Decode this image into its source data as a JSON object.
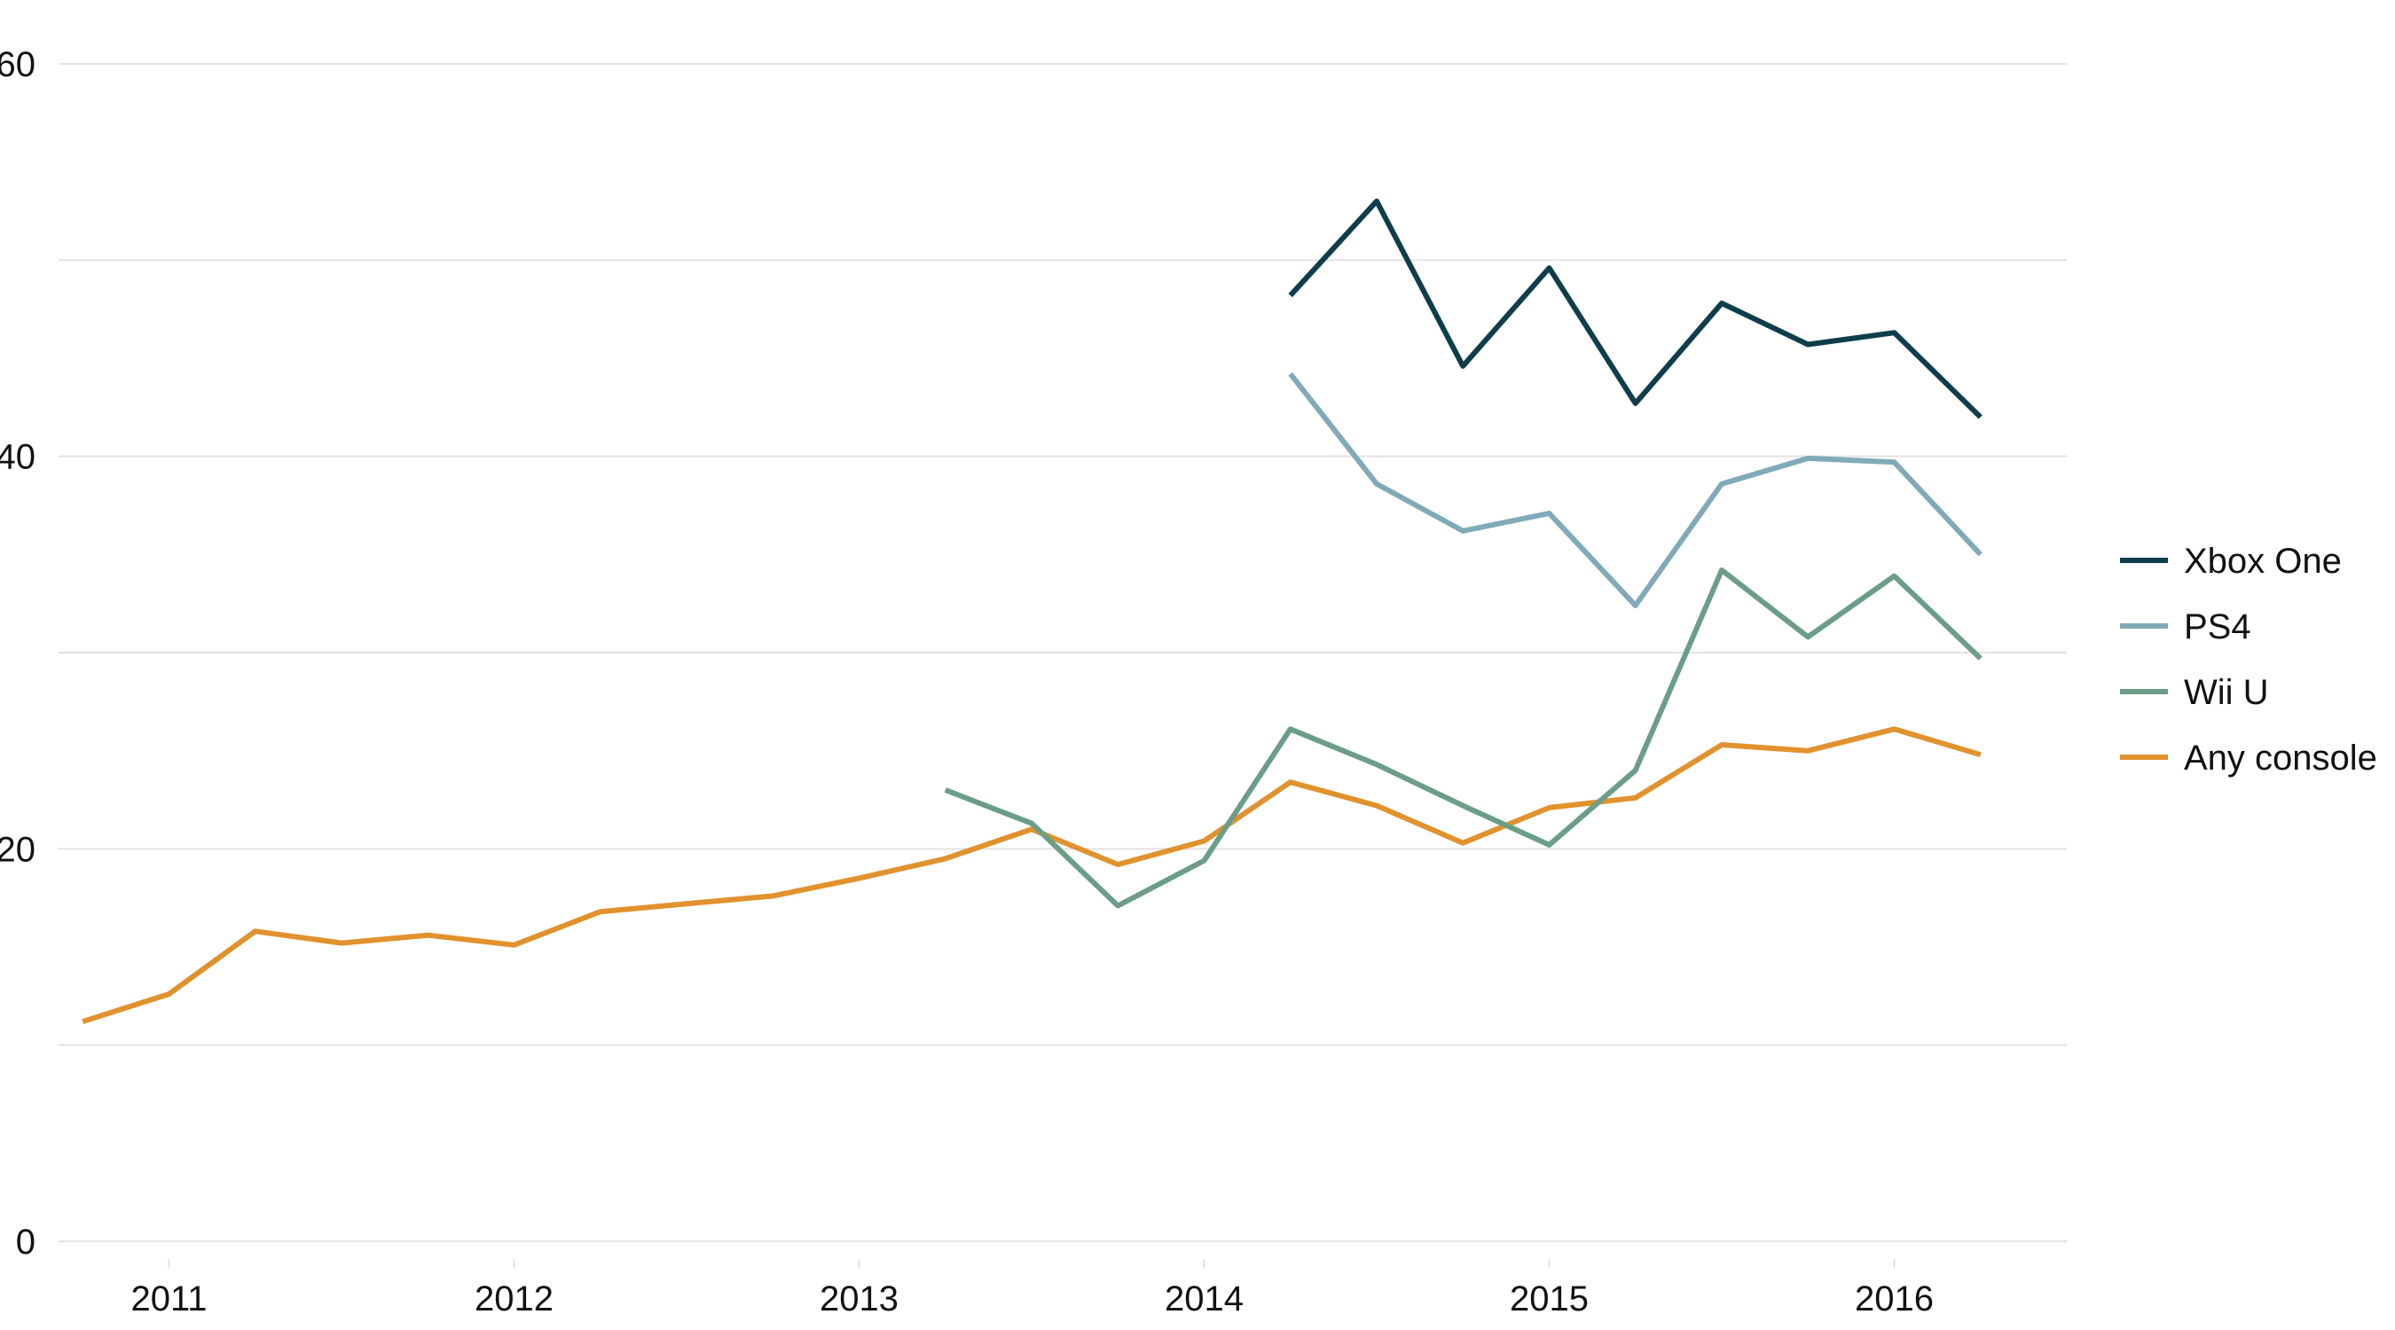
{
  "chart_data": {
    "type": "line",
    "title": "",
    "xlabel": "",
    "ylabel": "",
    "ylim": [
      0,
      60
    ],
    "xlim": [
      2010.68,
      2016.5
    ],
    "yticks": [
      0,
      20,
      40,
      60
    ],
    "ytick_labels": [
      "0",
      "20",
      "40",
      "60"
    ],
    "xticks": [
      2011,
      2012,
      2013,
      2014,
      2015,
      2016
    ],
    "xtick_labels": [
      "2011",
      "2012",
      "2013",
      "2014",
      "2015",
      "2016"
    ],
    "grid": true,
    "legend_position": "right",
    "series": [
      {
        "name": "Xbox One",
        "color": "#0e3d4b",
        "x": [
          2014.25,
          2014.5,
          2014.75,
          2015.0,
          2015.25,
          2015.5,
          2015.75,
          2016.0,
          2016.25
        ],
        "values": [
          48.2,
          53.0,
          44.6,
          49.6,
          42.7,
          47.8,
          45.7,
          46.3,
          42.0
        ]
      },
      {
        "name": "PS4",
        "color": "#80aab8",
        "x": [
          2014.25,
          2014.5,
          2014.75,
          2015.0,
          2015.25,
          2015.5,
          2015.75,
          2016.0,
          2016.25
        ],
        "values": [
          44.2,
          38.6,
          36.2,
          37.1,
          32.4,
          38.6,
          39.9,
          39.7,
          35.0
        ]
      },
      {
        "name": "Wii U",
        "color": "#6a9e86",
        "x": [
          2013.25,
          2013.5,
          2013.75,
          2014.0,
          2014.25,
          2014.5,
          2014.75,
          2015.0,
          2015.25,
          2015.5,
          2015.75,
          2016.0,
          2016.25
        ],
        "values": [
          23.0,
          21.3,
          17.1,
          19.4,
          26.1,
          24.3,
          22.2,
          20.2,
          24.0,
          34.2,
          30.8,
          33.9,
          29.7
        ]
      },
      {
        "name": "Any console",
        "color": "#e1922c",
        "x": [
          2010.75,
          2011.0,
          2011.25,
          2011.5,
          2011.75,
          2012.0,
          2012.25,
          2012.5,
          2012.75,
          2013.0,
          2013.25,
          2013.5,
          2013.75,
          2014.0,
          2014.25,
          2014.5,
          2014.75,
          2015.0,
          2015.25,
          2015.5,
          2015.75,
          2016.0,
          2016.25
        ],
        "values": [
          11.2,
          12.6,
          15.8,
          15.2,
          15.6,
          15.1,
          16.8,
          17.2,
          17.6,
          18.5,
          19.5,
          21.0,
          19.2,
          20.4,
          23.4,
          22.2,
          20.3,
          22.1,
          22.6,
          25.3,
          25.0,
          26.1,
          24.8
        ]
      }
    ]
  }
}
